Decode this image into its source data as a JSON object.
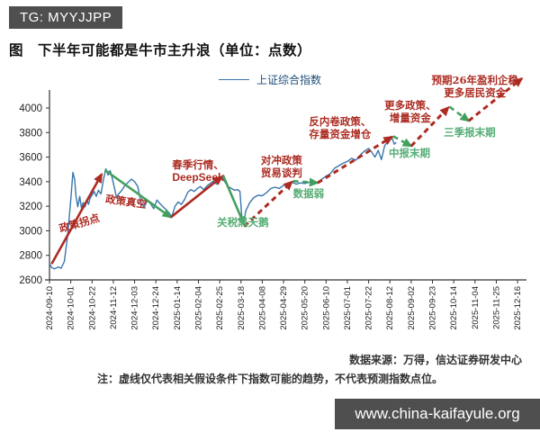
{
  "badges": {
    "telegram": "TG: MYYJJPP",
    "website": "www.china-kaifayule.org"
  },
  "title": "图　下半年可能都是牛市主升浪（单位：点数）",
  "legend": {
    "label": "上证综合指数"
  },
  "source_note": "数据来源：万得，信达证券研发中心",
  "footnote": "注：虚线仅代表相关假设条件下指数可能的趋势，不代表预测指数点位。",
  "colors": {
    "bull": "#ac2b22",
    "bear": "#42a05e",
    "bear_text": "#55ad75",
    "index": "#3a76ad",
    "legend_text": "#1f4e79",
    "badge_bg": "#4f4f4f",
    "axis": "#333333"
  },
  "chart_data": {
    "type": "line",
    "title": "下半年可能都是牛市主升浪",
    "ylabel": "点数",
    "ylim": [
      2600,
      4000
    ],
    "yticks": [
      2600,
      2800,
      3000,
      3200,
      3400,
      3600,
      3800,
      4000
    ],
    "xticklabels": [
      "2024-09-10",
      "2024-10-01",
      "2024-10-22",
      "2024-11-12",
      "2024-12-03",
      "2024-12-24",
      "2025-01-14",
      "2025-02-04",
      "2025-02-25",
      "2025-03-18",
      "2025-04-08",
      "2025-04-29",
      "2025-05-20",
      "2025-06-10",
      "2025-07-01",
      "2025-07-22",
      "2025-08-12",
      "2025-09-02",
      "2025-09-23",
      "2025-10-14",
      "2025-11-04",
      "2025-11-25",
      "2025-12-16"
    ],
    "series": [
      {
        "name": "上证综合指数",
        "points": [
          [
            0.0,
            2735
          ],
          [
            0.1,
            2700
          ],
          [
            0.25,
            2690
          ],
          [
            0.4,
            2705
          ],
          [
            0.55,
            2695
          ],
          [
            0.7,
            2750
          ],
          [
            0.85,
            2960
          ],
          [
            1.0,
            3250
          ],
          [
            1.1,
            3475
          ],
          [
            1.18,
            3420
          ],
          [
            1.25,
            3280
          ],
          [
            1.33,
            3195
          ],
          [
            1.42,
            3280
          ],
          [
            1.5,
            3185
          ],
          [
            1.58,
            3230
          ],
          [
            1.67,
            3195
          ],
          [
            1.75,
            3250
          ],
          [
            1.83,
            3215
          ],
          [
            1.92,
            3270
          ],
          [
            2.0,
            3290
          ],
          [
            2.1,
            3320
          ],
          [
            2.2,
            3280
          ],
          [
            2.3,
            3330
          ],
          [
            2.42,
            3300
          ],
          [
            2.55,
            3430
          ],
          [
            2.65,
            3505
          ],
          [
            2.75,
            3455
          ],
          [
            2.85,
            3490
          ],
          [
            2.95,
            3430
          ],
          [
            3.05,
            3350
          ],
          [
            3.15,
            3270
          ],
          [
            3.25,
            3300
          ],
          [
            3.4,
            3330
          ],
          [
            3.55,
            3370
          ],
          [
            3.7,
            3395
          ],
          [
            3.85,
            3420
          ],
          [
            4.0,
            3400
          ],
          [
            4.15,
            3360
          ],
          [
            4.3,
            3230
          ],
          [
            4.45,
            3190
          ],
          [
            4.6,
            3250
          ],
          [
            4.75,
            3220
          ],
          [
            4.9,
            3180
          ],
          [
            5.05,
            3250
          ],
          [
            5.2,
            3220
          ],
          [
            5.4,
            3185
          ],
          [
            5.6,
            3150
          ],
          [
            5.75,
            3115
          ],
          [
            5.9,
            3200
          ],
          [
            6.05,
            3235
          ],
          [
            6.2,
            3215
          ],
          [
            6.35,
            3255
          ],
          [
            6.5,
            3315
          ],
          [
            6.65,
            3335
          ],
          [
            6.8,
            3320
          ],
          [
            6.95,
            3345
          ],
          [
            7.1,
            3360
          ],
          [
            7.25,
            3335
          ],
          [
            7.4,
            3365
          ],
          [
            7.55,
            3385
          ],
          [
            7.7,
            3405
          ],
          [
            7.85,
            3380
          ],
          [
            8.0,
            3415
          ],
          [
            8.1,
            3435
          ],
          [
            8.25,
            3395
          ],
          [
            8.4,
            3360
          ],
          [
            8.55,
            3345
          ],
          [
            8.7,
            3330
          ],
          [
            8.85,
            3335
          ],
          [
            8.95,
            3320
          ],
          [
            9.05,
            3090
          ],
          [
            9.12,
            3055
          ],
          [
            9.22,
            3160
          ],
          [
            9.4,
            3225
          ],
          [
            9.6,
            3270
          ],
          [
            9.8,
            3290
          ],
          [
            10.0,
            3285
          ],
          [
            10.2,
            3310
          ],
          [
            10.4,
            3345
          ],
          [
            10.6,
            3355
          ],
          [
            10.8,
            3345
          ],
          [
            11.0,
            3370
          ],
          [
            11.2,
            3380
          ],
          [
            11.4,
            3395
          ],
          [
            11.6,
            3380
          ],
          [
            11.8,
            3390
          ],
          [
            12.0,
            3385
          ],
          [
            12.2,
            3395
          ],
          [
            12.4,
            3390
          ],
          [
            12.6,
            3395
          ],
          [
            12.8,
            3420
          ],
          [
            13.0,
            3445
          ],
          [
            13.2,
            3465
          ],
          [
            13.4,
            3510
          ],
          [
            13.6,
            3530
          ],
          [
            13.8,
            3550
          ],
          [
            14.0,
            3565
          ],
          [
            14.2,
            3590
          ],
          [
            14.4,
            3575
          ],
          [
            14.6,
            3615
          ],
          [
            14.8,
            3650
          ],
          [
            15.0,
            3670
          ],
          [
            15.15,
            3640
          ],
          [
            15.3,
            3600
          ],
          [
            15.45,
            3655
          ],
          [
            15.6,
            3580
          ],
          [
            15.75,
            3690
          ],
          [
            15.9,
            3730
          ],
          [
            16.0,
            3740
          ],
          [
            16.1,
            3755
          ],
          [
            16.2,
            3705
          ],
          [
            16.3,
            3720
          ]
        ]
      }
    ],
    "trend_segments": [
      {
        "label": "政策拐点",
        "style": "solid",
        "dir": "up",
        "from": [
          0.1,
          2730
        ],
        "to": [
          2.45,
          3460
        ]
      },
      {
        "label": "政策真空",
        "style": "solid",
        "dir": "down",
        "from": [
          2.6,
          3495
        ],
        "to": [
          5.7,
          3110
        ]
      },
      {
        "label": "春季行情、DeepSeek",
        "style": "solid",
        "dir": "up",
        "from": [
          5.7,
          3110
        ],
        "to": [
          8.1,
          3440
        ]
      },
      {
        "label": "关税黑天鹅",
        "style": "solid",
        "dir": "down",
        "from": [
          8.15,
          3455
        ],
        "to": [
          9.15,
          3050
        ]
      },
      {
        "label": "对冲政策、贸易谈判",
        "style": "dashed",
        "dir": "up",
        "from": [
          9.15,
          3035
        ],
        "to": [
          11.4,
          3400
        ]
      },
      {
        "label": "数据弱",
        "style": "dashed",
        "dir": "down",
        "from": [
          11.45,
          3405
        ],
        "to": [
          12.6,
          3390
        ]
      },
      {
        "label": "反内卷政策、存量资金增仓",
        "style": "dashed",
        "dir": "up",
        "from": [
          12.6,
          3390
        ],
        "to": [
          16.1,
          3765
        ]
      },
      {
        "label": "中报末期",
        "style": "dashed",
        "dir": "down",
        "from": [
          16.15,
          3770
        ],
        "to": [
          17.0,
          3690
        ]
      },
      {
        "label": "更多政策、增量资金",
        "style": "dashed",
        "dir": "up",
        "from": [
          17.0,
          3690
        ],
        "to": [
          18.75,
          4005
        ]
      },
      {
        "label": "三季报末期",
        "style": "dashed",
        "dir": "down",
        "from": [
          18.8,
          4010
        ],
        "to": [
          19.7,
          3895
        ]
      },
      {
        "label": "预期26年盈利企稳、更多居民资金",
        "style": "dashed",
        "dir": "up",
        "from": [
          19.7,
          3895
        ],
        "to": [
          22.2,
          4240
        ]
      }
    ],
    "annotations": [
      {
        "lines": [
          "政策拐点"
        ],
        "tone": "bull",
        "anchor": [
          1.4,
          3062
        ],
        "rotate": -16
      },
      {
        "lines": [
          "政策真空"
        ],
        "tone": "bull",
        "anchor": [
          3.6,
          3238
        ],
        "rotate": 8
      },
      {
        "lines": [
          "春季行情、",
          "DeepSeek"
        ],
        "tone": "bull",
        "anchor": [
          6.98,
          3487
        ],
        "rotate": 0,
        "strong_lines": [
          1
        ]
      },
      {
        "lines": [
          "关税黑天鹅"
        ],
        "tone": "bear",
        "anchor": [
          9.09,
          3069
        ],
        "rotate": 0
      },
      {
        "lines": [
          "对冲政策",
          "贸易谈判"
        ],
        "tone": "bull",
        "anchor": [
          10.91,
          3523
        ],
        "rotate": 0
      },
      {
        "lines": [
          "数据弱"
        ],
        "tone": "bear",
        "anchor": [
          12.18,
          3304
        ],
        "rotate": 0
      },
      {
        "lines": [
          "反内卷政策、",
          "存量资金增仓"
        ],
        "tone": "bull",
        "anchor": [
          13.66,
          3839
        ],
        "rotate": 0
      },
      {
        "lines": [
          "中报末期"
        ],
        "tone": "bear",
        "anchor": [
          16.92,
          3633
        ],
        "rotate": 0
      },
      {
        "lines": [
          "更多政策、",
          "增量资金"
        ],
        "tone": "bull",
        "anchor": [
          16.96,
          3971
        ],
        "rotate": 0
      },
      {
        "lines": [
          "三季报末期"
        ],
        "tone": "bear",
        "anchor": [
          19.75,
          3802
        ],
        "rotate": 0
      },
      {
        "lines": [
          "预期26年盈利企稳",
          "更多居民资金"
        ],
        "tone": "bull",
        "anchor": [
          20.0,
          4176
        ],
        "rotate": 0
      }
    ]
  }
}
